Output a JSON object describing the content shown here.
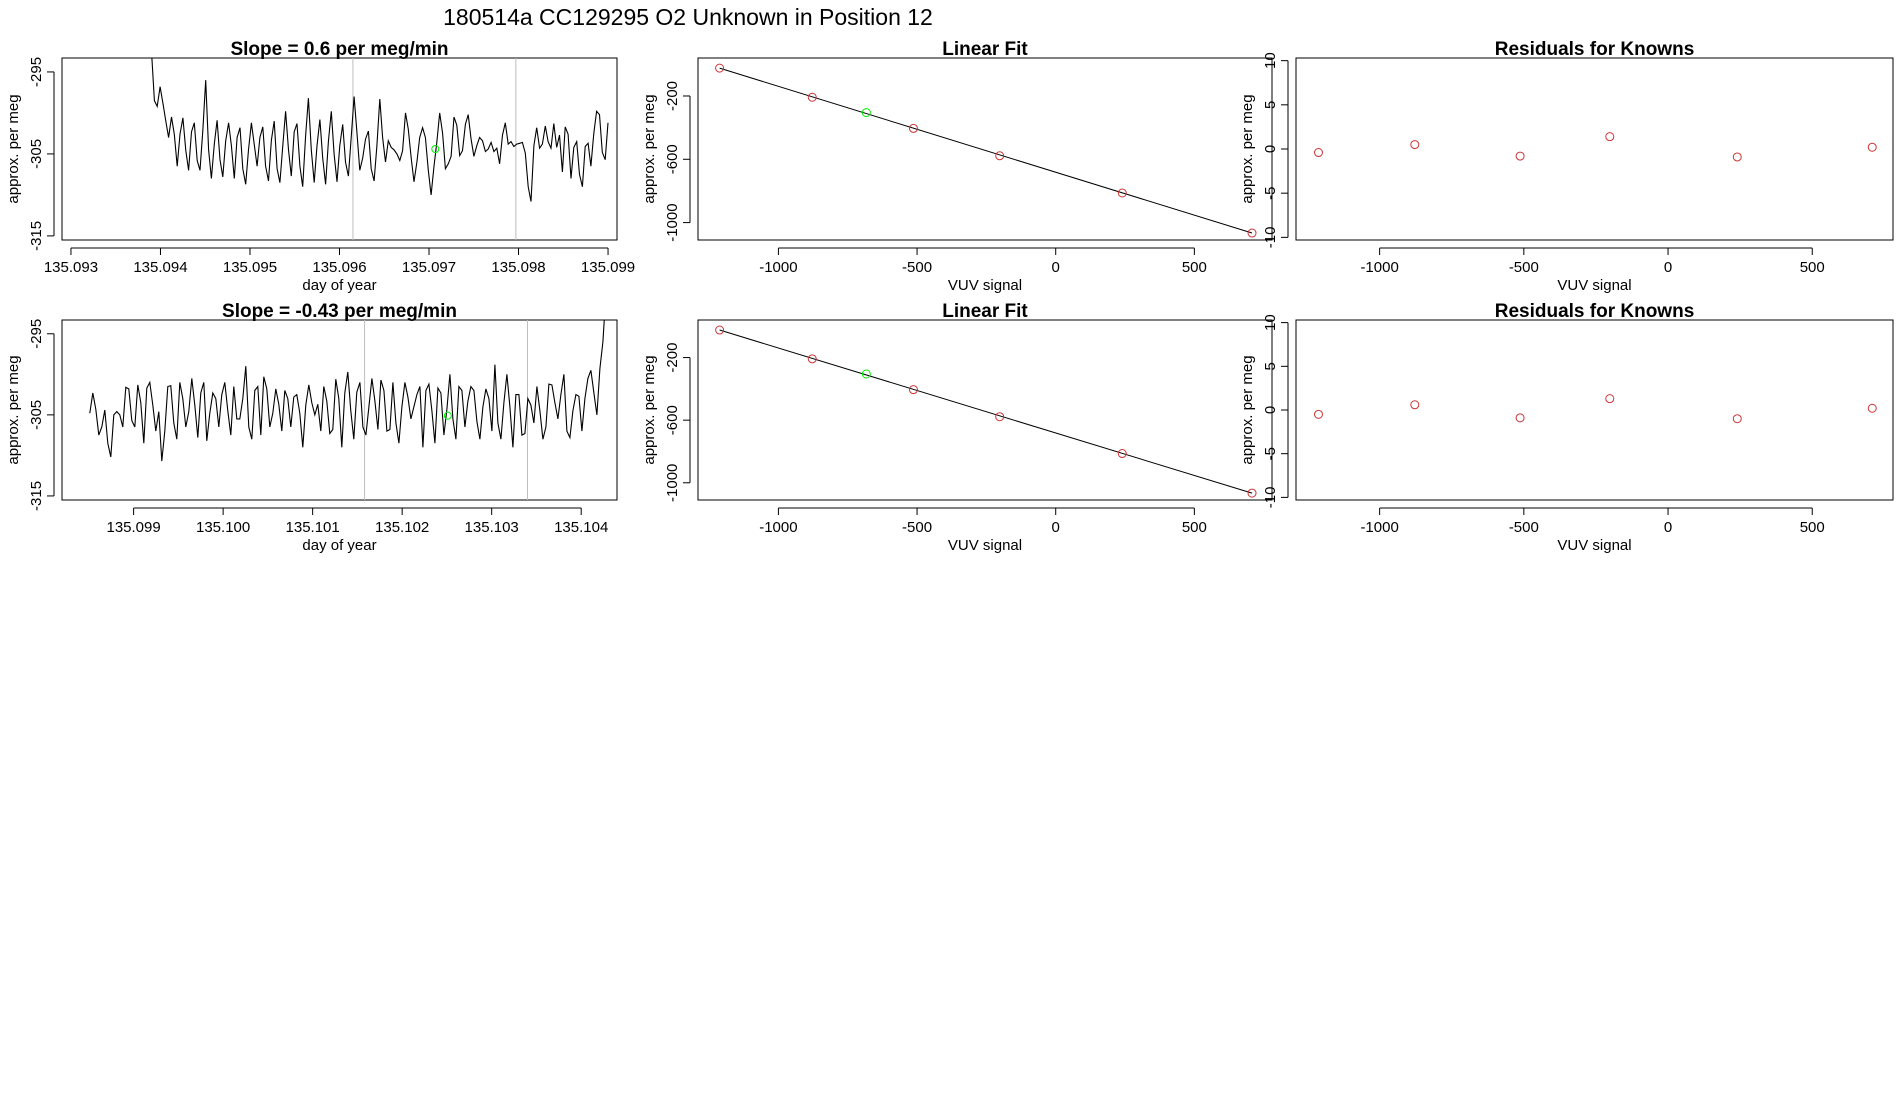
{
  "main_title": "180514a      CC129295   O2 Unknown in Position  12",
  "colors": {
    "series": "#000000",
    "known_point": "#cd3333",
    "unknown_point": "#00ee00",
    "vline": "#bebebe"
  },
  "chart_data": [
    {
      "id": "ts1",
      "type": "line",
      "title": "Slope =  0.6  per meg/min",
      "xlabel": "day of year",
      "ylabel": "approx. per meg",
      "xlim": [
        135.0929,
        135.0991
      ],
      "ylim": [
        -315.5,
        -293.3
      ],
      "xticks": [
        135.093,
        135.094,
        135.095,
        135.096,
        135.097,
        135.098,
        135.099
      ],
      "xtick_labels": [
        "135.093",
        "135.094",
        "135.095",
        "135.096",
        "135.097",
        "135.098",
        "135.099"
      ],
      "yticks": [
        -295,
        -305,
        -315
      ],
      "ytick_labels": [
        "-295",
        "-305",
        "-315"
      ],
      "x_start": 135.0939,
      "x_end": 135.099,
      "y": [
        -292.5,
        -298.5,
        -299.2,
        -296.8,
        -298.8,
        -301.0,
        -303.0,
        -300.5,
        -302.6,
        -306.5,
        -302.6,
        -300.6,
        -304.6,
        -307.0,
        -302.3,
        -301.2,
        -305.8,
        -307.0,
        -302.0,
        -296.0,
        -304.5,
        -308.0,
        -303.8,
        -300.9,
        -305.7,
        -307.8,
        -303.4,
        -301.2,
        -304.0,
        -308.0,
        -303.0,
        -301.8,
        -306.8,
        -308.7,
        -304.5,
        -301.2,
        -303.8,
        -306.5,
        -303.0,
        -301.7,
        -306.5,
        -308.3,
        -303.3,
        -301.0,
        -306.8,
        -308.5,
        -304.0,
        -299.8,
        -304.5,
        -307.7,
        -302.3,
        -301.3,
        -306.5,
        -309.0,
        -302.8,
        -298.2,
        -304.5,
        -308.5,
        -304.0,
        -300.8,
        -305.5,
        -308.7,
        -303.5,
        -299.8,
        -305.0,
        -308.4,
        -304.0,
        -301.4,
        -306.0,
        -307.7,
        -303.0,
        -298.0,
        -302.5,
        -307.0,
        -305.5,
        -303.2,
        -302.2,
        -306.8,
        -308.3,
        -304.0,
        -298.3,
        -303.0,
        -306.0,
        -303.4,
        -304.2,
        -304.5,
        -305.0,
        -305.8,
        -304.6,
        -300.0,
        -302.0,
        -305.5,
        -308.4,
        -306.0,
        -303.0,
        -301.8,
        -303.0,
        -307.0,
        -310.0,
        -306.5,
        -303.6,
        -300.0,
        -302.5,
        -306.8,
        -306.2,
        -305.3,
        -300.5,
        -301.5,
        -305.2,
        -304.6,
        -301.4,
        -300.2,
        -303.2,
        -305.3,
        -304.0,
        -303.0,
        -303.4,
        -304.7,
        -304.4,
        -303.6,
        -304.7,
        -304.3,
        -306.2,
        -302.7,
        -301.2,
        -303.8,
        -303.5,
        -304.1,
        -303.8,
        -303.7,
        -303.6,
        -304.9,
        -309.0,
        -310.8,
        -304.0,
        -301.8,
        -304.3,
        -303.8,
        -301.6,
        -303.5,
        -304.3,
        -301.3,
        -304.2,
        -302.7,
        -307.2,
        -301.7,
        -302.6,
        -308.0,
        -304.2,
        -303.5,
        -307.5,
        -309.0,
        -304.1,
        -303.7,
        -306.5,
        -302.5,
        -299.8,
        -300.2,
        -304.8,
        -305.7,
        -301.2
      ],
      "vlines": [
        135.09615,
        135.09797
      ],
      "marker": {
        "x": 135.09707,
        "y": -304.4
      }
    },
    {
      "id": "fit1",
      "type": "scatter",
      "title": "Linear Fit",
      "xlabel": "VUV signal",
      "ylabel": "approx. per meg",
      "xlim": [
        -1290,
        780
      ],
      "ylim": [
        -1110,
        40
      ],
      "xticks": [
        -1000,
        -500,
        0,
        500
      ],
      "xtick_labels": [
        "-1000",
        "-500",
        "0",
        "500"
      ],
      "yticks": [
        -200,
        -600,
        -1000
      ],
      "ytick_labels": [
        "-200",
        "-600",
        "-1000"
      ],
      "knowns": {
        "x": [
          -1212,
          -878,
          -513,
          -202,
          240,
          708
        ],
        "y": [
          -24,
          -208,
          -405,
          -578,
          -813,
          -1066
        ]
      },
      "unknown": {
        "x": -683,
        "y": -305
      },
      "fit_line": {
        "x": [
          -1212,
          708
        ],
        "y": [
          -24,
          -1066
        ]
      }
    },
    {
      "id": "res1",
      "type": "scatter",
      "title": "Residuals for Knowns",
      "xlabel": "VUV signal",
      "ylabel": "approx. per meg",
      "xlim": [
        -1290,
        780
      ],
      "ylim": [
        -10.3,
        10.3
      ],
      "xticks": [
        -1000,
        -500,
        0,
        500
      ],
      "xtick_labels": [
        "-1000",
        "-500",
        "0",
        "500"
      ],
      "yticks": [
        10,
        5,
        0,
        -5,
        -10
      ],
      "ytick_labels": [
        "10",
        "5",
        "0",
        "-5",
        "-10"
      ],
      "x": [
        -1212,
        -878,
        -513,
        -202,
        240,
        708
      ],
      "y": [
        -0.4,
        0.5,
        -0.8,
        1.4,
        -0.9,
        0.2
      ]
    },
    {
      "id": "ts2",
      "type": "line",
      "title": "Slope =  -0.43  per meg/min",
      "xlabel": "day of year",
      "ylabel": "approx. per meg",
      "xlim": [
        135.0982,
        135.1044
      ],
      "ylim": [
        -315.5,
        -293.3
      ],
      "xticks": [
        135.099,
        135.1,
        135.101,
        135.102,
        135.103,
        135.104
      ],
      "xtick_labels": [
        "135.099",
        "135.100",
        "135.101",
        "135.102",
        "135.103",
        "135.104"
      ],
      "yticks": [
        -295,
        -305,
        -315
      ],
      "ytick_labels": [
        "-295",
        "-305",
        "-315"
      ],
      "x_start": 135.09851,
      "x_end": 135.10431,
      "y": [
        -304.8,
        -302.3,
        -304.3,
        -307.5,
        -306.5,
        -304.4,
        -308.5,
        -310.2,
        -305.0,
        -304.6,
        -305.0,
        -306.5,
        -301.6,
        -301.8,
        -305.7,
        -306.5,
        -301.3,
        -303.5,
        -308.5,
        -301.7,
        -301.0,
        -303.8,
        -307.0,
        -304.6,
        -310.7,
        -307.0,
        -301.5,
        -301.4,
        -306.0,
        -308.0,
        -301.0,
        -303.0,
        -306.5,
        -304.6,
        -300.5,
        -303.8,
        -307.8,
        -302.3,
        -301.0,
        -308.2,
        -304.8,
        -302.3,
        -303.0,
        -306.5,
        -302.5,
        -301.0,
        -304.5,
        -307.5,
        -301.5,
        -305.5,
        -305.5,
        -303.0,
        -299.0,
        -306.5,
        -308.0,
        -302.0,
        -301.5,
        -307.5,
        -300.3,
        -301.8,
        -306.5,
        -304.8,
        -301.8,
        -303.7,
        -307.0,
        -302.0,
        -303.0,
        -306.5,
        -302.8,
        -302.5,
        -304.8,
        -309.0,
        -303.8,
        -301.3,
        -303.5,
        -305.0,
        -303.7,
        -307.0,
        -301.5,
        -303.3,
        -307.3,
        -306.8,
        -300.6,
        -303.0,
        -309.0,
        -302.3,
        -299.7,
        -304.5,
        -308.0,
        -302.2,
        -301.0,
        -306.5,
        -307.5,
        -304.0,
        -300.5,
        -303.3,
        -306.8,
        -300.7,
        -302.0,
        -307.0,
        -306.8,
        -301.0,
        -306.0,
        -308.5,
        -304.0,
        -301.0,
        -302.8,
        -305.5,
        -304.0,
        -302.5,
        -301.5,
        -309.0,
        -302.0,
        -301.2,
        -304.5,
        -308.5,
        -301.7,
        -302.3,
        -307.5,
        -304.3,
        -300.0,
        -305.5,
        -308.0,
        -301.5,
        -302.0,
        -306.5,
        -303.3,
        -301.5,
        -302.0,
        -305.8,
        -308.0,
        -304.0,
        -301.8,
        -303.0,
        -307.0,
        -298.8,
        -306.0,
        -308.0,
        -303.5,
        -300.0,
        -304.0,
        -309.0,
        -302.5,
        -302.5,
        -307.5,
        -307.3,
        -303.0,
        -303.8,
        -306.0,
        -301.5,
        -304.5,
        -308.0,
        -306.5,
        -301.2,
        -301.3,
        -303.5,
        -305.5,
        -302.5,
        -300.0,
        -307.0,
        -307.8,
        -304.5,
        -302.5,
        -302.7,
        -307.0,
        -303.0,
        -300.5,
        -299.5,
        -302.3,
        -305.0,
        -299.3,
        -296.0,
        -290.0,
        -286.5
      ],
      "vlines": [
        135.10158,
        135.1034
      ],
      "marker": {
        "x": 135.10251,
        "y": -305.1
      }
    },
    {
      "id": "fit2",
      "type": "scatter",
      "title": "Linear Fit",
      "xlabel": "VUV signal",
      "ylabel": "approx. per meg",
      "xlim": [
        -1290,
        780
      ],
      "ylim": [
        -1110,
        40
      ],
      "xticks": [
        -1000,
        -500,
        0,
        500
      ],
      "xtick_labels": [
        "-1000",
        "-500",
        "0",
        "500"
      ],
      "yticks": [
        -200,
        -600,
        -1000
      ],
      "ytick_labels": [
        "-200",
        "-600",
        "-1000"
      ],
      "knowns": {
        "x": [
          -1212,
          -878,
          -513,
          -202,
          240,
          708
        ],
        "y": [
          -24,
          -208,
          -405,
          -578,
          -813,
          -1066
        ]
      },
      "unknown": {
        "x": -683,
        "y": -305
      },
      "fit_line": {
        "x": [
          -1212,
          708
        ],
        "y": [
          -24,
          -1066
        ]
      }
    },
    {
      "id": "res2",
      "type": "scatter",
      "title": "Residuals for Knowns",
      "xlabel": "VUV signal",
      "ylabel": "approx. per meg",
      "xlim": [
        -1290,
        780
      ],
      "ylim": [
        -10.3,
        10.3
      ],
      "xticks": [
        -1000,
        -500,
        0,
        500
      ],
      "xtick_labels": [
        "-1000",
        "-500",
        "0",
        "500"
      ],
      "yticks": [
        10,
        5,
        0,
        -5,
        -10
      ],
      "ytick_labels": [
        "10",
        "5",
        "0",
        "-5",
        "-10"
      ],
      "x": [
        -1212,
        -878,
        -513,
        -202,
        240,
        708
      ],
      "y": [
        -0.5,
        0.6,
        -0.9,
        1.3,
        -1.0,
        0.2
      ]
    }
  ]
}
